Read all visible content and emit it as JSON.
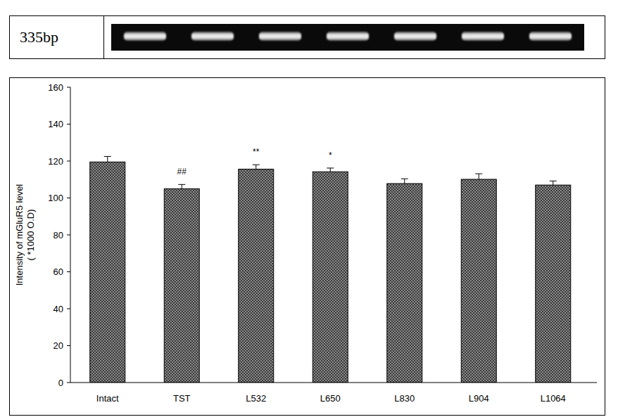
{
  "chart_data": {
    "type": "bar",
    "gel_label": "335bp",
    "ylabel": "Intensity of mGluR5 level\n( *1000 O.D)",
    "categories": [
      "Intact",
      "TST",
      "L532",
      "L650",
      "L830",
      "L904",
      "L1064"
    ],
    "values": [
      119.5,
      105,
      115.6,
      114.2,
      107.8,
      110.1,
      107
    ],
    "errors": [
      3,
      2.3,
      2.4,
      2,
      2.6,
      3,
      2.2
    ],
    "annotations": [
      {
        "category": "TST",
        "text": "##"
      },
      {
        "category": "L532",
        "text": "**"
      },
      {
        "category": "L650",
        "text": "*"
      }
    ],
    "color": "#8a8a8a",
    "ylim": [
      0,
      160
    ],
    "yticks": [
      0,
      20,
      40,
      60,
      80,
      100,
      120,
      140,
      160
    ],
    "grid": false
  }
}
